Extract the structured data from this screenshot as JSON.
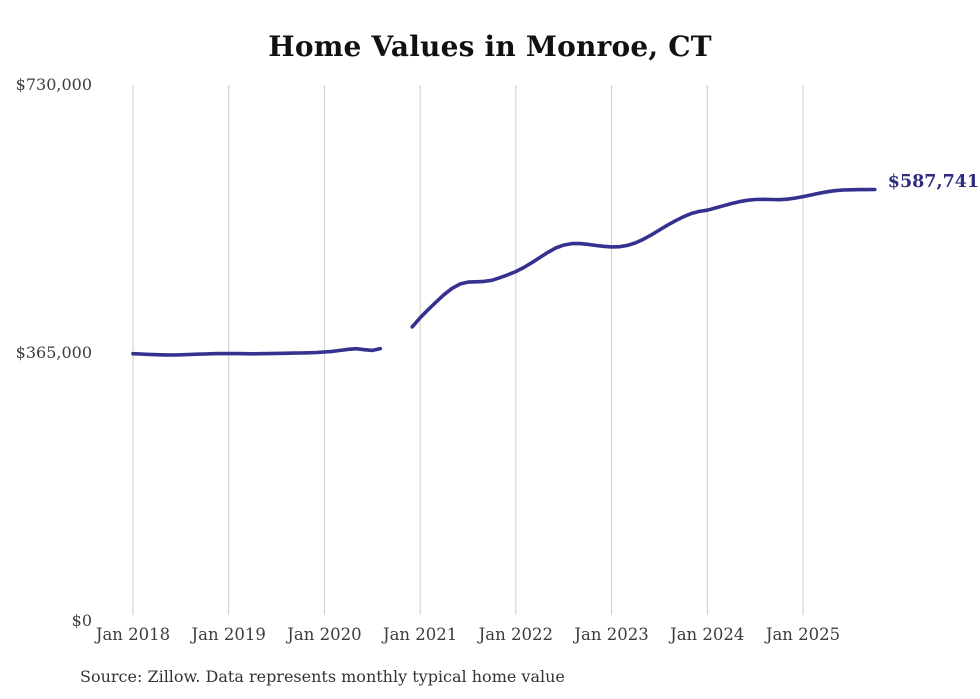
{
  "title": "Home Values in Monroe, CT",
  "source_note": "Source: Zillow. Data represents monthly typical home value",
  "end_label": "$587,741",
  "colors": {
    "line": "#35318f",
    "end_label": "#2e2b80",
    "gridline": "#cccccc",
    "tick_label": "#3d3d3d",
    "title": "#111111",
    "source": "#333333",
    "background": "#ffffff"
  },
  "chart_data": {
    "type": "line",
    "title": "Home Values in Monroe, CT",
    "xlabel": "",
    "ylabel": "",
    "unit": "USD",
    "frequency": "monthly",
    "x_start": "2018-01",
    "x_end": "2025-10",
    "x_tick_labels": [
      "Jan 2018",
      "Jan 2019",
      "Jan 2020",
      "Jan 2021",
      "Jan 2022",
      "Jan 2023",
      "Jan 2024",
      "Jan 2025"
    ],
    "y_tick_labels": [
      "$730,000",
      "$365,000",
      "$0"
    ],
    "y_tick_values": [
      730000,
      365000,
      0
    ],
    "ylim": [
      0,
      730000
    ],
    "grid": "vertical-only",
    "legend": "none",
    "gap_months": [
      "2020-09",
      "2020-10",
      "2020-11"
    ],
    "final_value": 587741,
    "series": [
      {
        "name": "Monthly typical home value",
        "values": [
          364000,
          363600,
          363100,
          362700,
          362400,
          362300,
          362500,
          362900,
          363300,
          363700,
          364000,
          364200,
          364300,
          364200,
          364000,
          363900,
          364000,
          364200,
          364400,
          364600,
          364800,
          365000,
          365300,
          365700,
          366300,
          367200,
          368500,
          370000,
          370800,
          369500,
          368600,
          371000,
          null,
          null,
          null,
          400500,
          413000,
          424000,
          434500,
          444500,
          453000,
          459000,
          461500,
          462000,
          462500,
          464000,
          467500,
          471500,
          476000,
          481500,
          488000,
          495000,
          502000,
          508000,
          512000,
          514000,
          514000,
          513000,
          511500,
          510300,
          509500,
          509800,
          511500,
          515000,
          520000,
          526000,
          532500,
          539000,
          545000,
          550500,
          555000,
          557800,
          559500,
          562500,
          565500,
          568500,
          571000,
          573000,
          574000,
          574300,
          574000,
          573800,
          574500,
          576000,
          578000,
          580200,
          582500,
          584500,
          586000,
          587000,
          587300,
          587500,
          587600,
          587741
        ]
      }
    ]
  }
}
